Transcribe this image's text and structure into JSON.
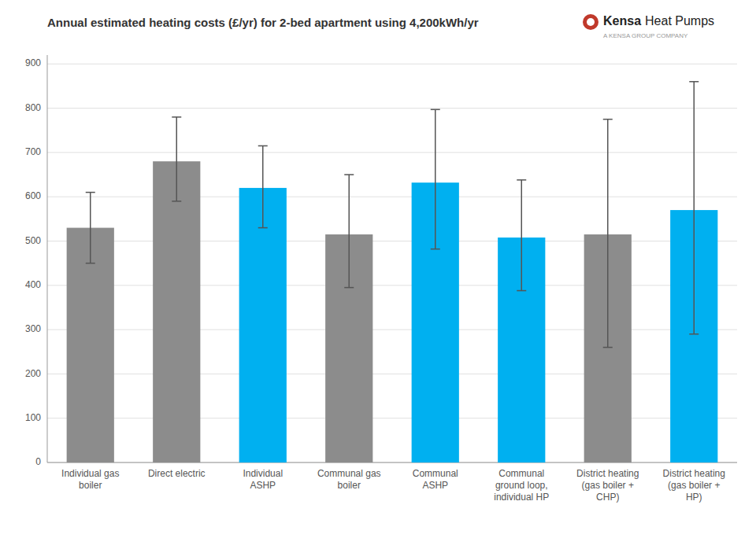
{
  "chart_data": {
    "type": "bar",
    "title": "Annual estimated heating costs (£/yr) for 2-bed apartment using 4,200kWh/yr",
    "categories": [
      "Individual gas\nboiler",
      "Direct electric",
      "Individual\nASHP",
      "Communal gas\nboiler",
      "Communal\nASHP",
      "Communal\nground loop,\nindividual HP",
      "District heating\n(gas boiler +\nCHP)",
      "District heating\n(gas boiler +\nHP)"
    ],
    "values": [
      530,
      680,
      620,
      515,
      632,
      508,
      515,
      570
    ],
    "colors": [
      "#8c8c8c",
      "#8c8c8c",
      "#00b0f0",
      "#8c8c8c",
      "#00b0f0",
      "#00b0f0",
      "#8c8c8c",
      "#00b0f0"
    ],
    "error_low": [
      80,
      90,
      90,
      120,
      150,
      120,
      255,
      280
    ],
    "error_high": [
      80,
      100,
      95,
      135,
      165,
      130,
      260,
      290
    ],
    "ylim": [
      0,
      920
    ],
    "yticks": [
      0,
      100,
      200,
      300,
      400,
      500,
      600,
      700,
      800,
      900
    ],
    "grid": true,
    "annotations": [
      "Kensa",
      "Heat Pumps",
      "A KENSA GROUP COMPANY"
    ]
  }
}
